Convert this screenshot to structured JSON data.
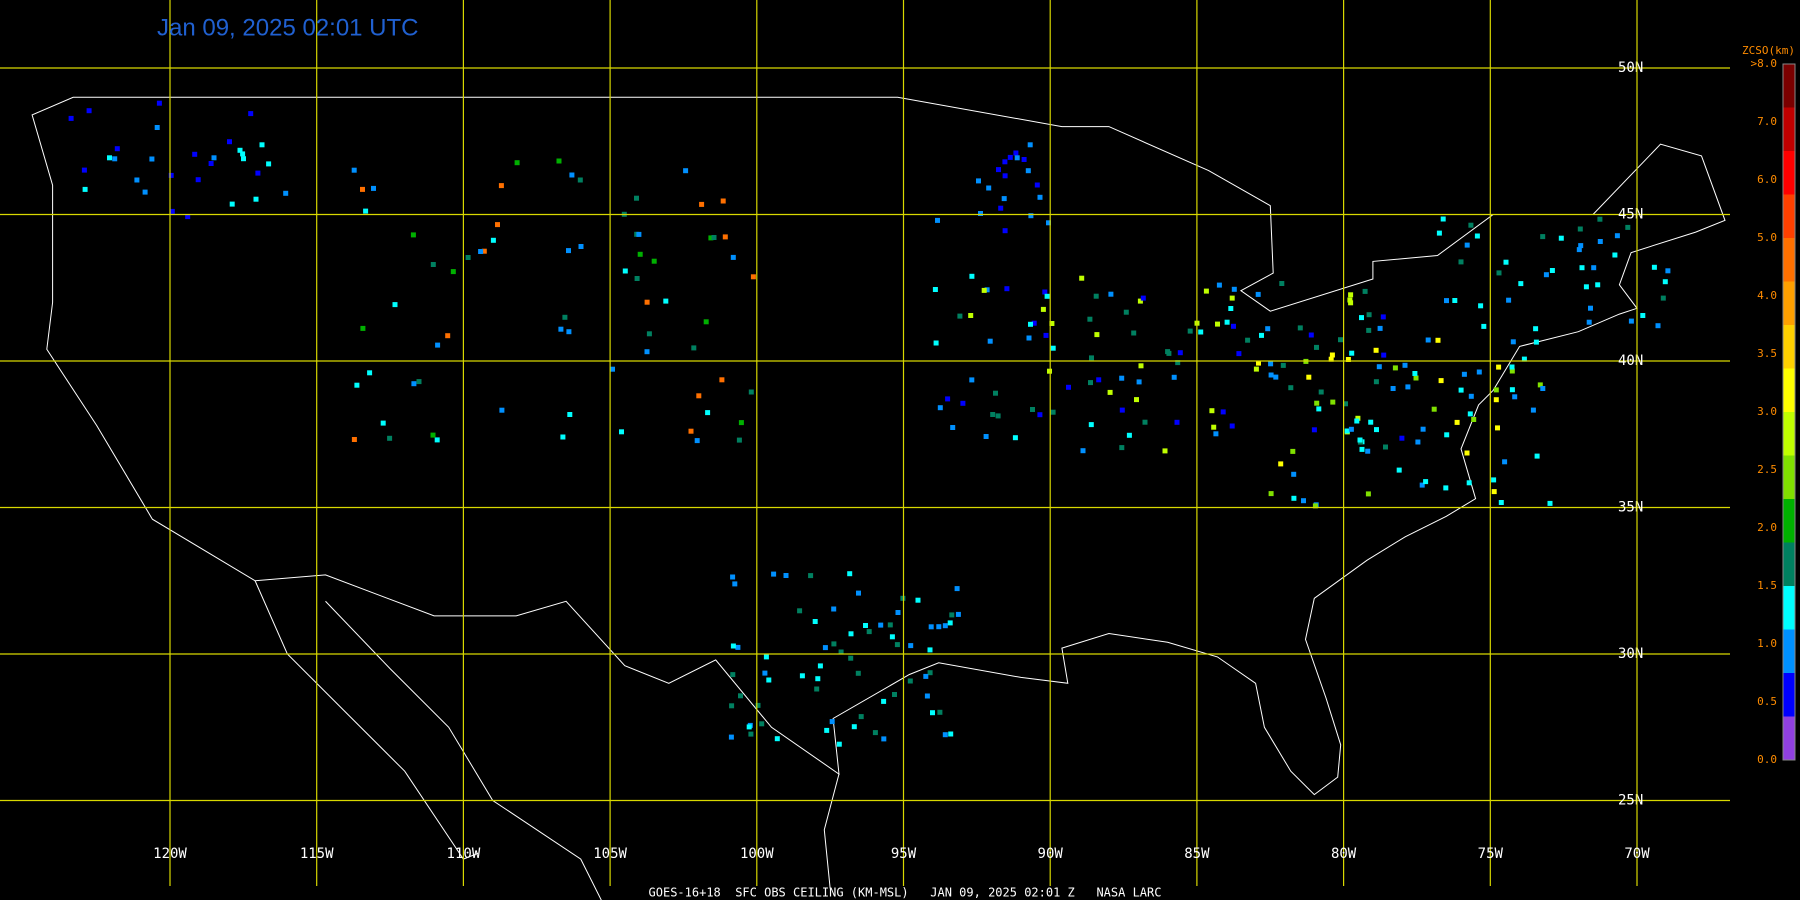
{
  "header": {
    "title": "Jan 09, 2025 02:01 UTC"
  },
  "grid": {
    "latitude_labels": [
      "50N",
      "45N",
      "40N",
      "35N",
      "30N",
      "25N"
    ],
    "longitude_labels": [
      "120W",
      "115W",
      "110W",
      "105W",
      "100W",
      "95W",
      "90W",
      "85W",
      "80W",
      "75W",
      "70W"
    ]
  },
  "legend": {
    "title": "ZCSO(km)",
    "top_label": ">8.0",
    "labels": [
      "7.0",
      "6.0",
      "5.0",
      "4.0",
      "3.5",
      "3.0",
      "2.5",
      "2.0",
      "1.5",
      "1.0",
      "0.5",
      "0.0"
    ]
  },
  "footer": {
    "caption": "GOES-16+18  SFC OBS CEILING (KM-MSL)   JAN 09, 2025 02:01 Z   NASA LARC"
  }
}
